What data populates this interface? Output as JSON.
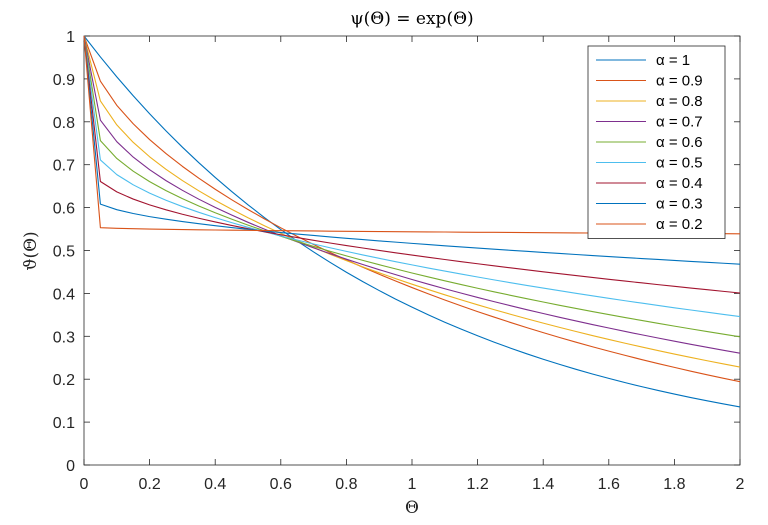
{
  "chart_data": {
    "type": "line",
    "title": "ψ(Θ) = exp(Θ)",
    "xlabel": "Θ",
    "ylabel": "ϑ(Θ)",
    "xlim": [
      0,
      2
    ],
    "ylim": [
      0,
      1
    ],
    "xticks": [
      0,
      0.2,
      0.4,
      0.6,
      0.8,
      1,
      1.2,
      1.4,
      1.6,
      1.8,
      2
    ],
    "xtick_labels": [
      "0",
      "0.2",
      "0.4",
      "0.6",
      "0.8",
      "1",
      "1.2",
      "1.4",
      "1.6",
      "1.8",
      "2"
    ],
    "yticks": [
      0,
      0.1,
      0.2,
      0.3,
      0.4,
      0.5,
      0.6,
      0.7,
      0.8,
      0.9,
      1
    ],
    "ytick_labels": [
      "0",
      "0.1",
      "0.2",
      "0.3",
      "0.4",
      "0.5",
      "0.6",
      "0.7",
      "0.8",
      "0.9",
      "1"
    ],
    "grid": false,
    "legend_position": "top-right",
    "x": [
      0,
      0.05,
      0.1,
      0.15,
      0.2,
      0.25,
      0.3,
      0.35,
      0.4,
      0.45,
      0.5,
      0.55,
      0.6,
      0.65,
      0.7,
      0.75,
      0.8,
      0.85,
      0.9,
      0.95,
      1.0,
      1.05,
      1.1,
      1.15,
      1.2,
      1.25,
      1.3,
      1.35,
      1.4,
      1.45,
      1.5,
      1.55,
      1.6,
      1.65,
      1.7,
      1.75,
      1.8,
      1.85,
      1.9,
      1.95,
      2.0
    ],
    "series": [
      {
        "name": "α = 1",
        "color": "#0072bd",
        "values": [
          1.0,
          0.9512,
          0.9048,
          0.8607,
          0.8187,
          0.7788,
          0.7408,
          0.7047,
          0.6703,
          0.6376,
          0.6065,
          0.5769,
          0.5488,
          0.522,
          0.4966,
          0.4724,
          0.4493,
          0.4274,
          0.4066,
          0.3867,
          0.3679,
          0.3499,
          0.3329,
          0.3166,
          0.3012,
          0.2865,
          0.2725,
          0.2592,
          0.2466,
          0.2346,
          0.2231,
          0.2122,
          0.2019,
          0.192,
          0.1827,
          0.1738,
          0.1653,
          0.1572,
          0.1496,
          0.1423,
          0.1353
        ]
      },
      {
        "name": "α = 0.9",
        "color": "#d95319",
        "values": [
          1.0,
          0.8946,
          0.8383,
          0.7954,
          0.7586,
          0.7259,
          0.6961,
          0.6686,
          0.6428,
          0.6185,
          0.5956,
          0.5737,
          0.5529,
          0.533,
          0.5139,
          0.4956,
          0.478,
          0.461,
          0.4446,
          0.4289,
          0.4136,
          0.3989,
          0.3847,
          0.371,
          0.3576,
          0.3448,
          0.3323,
          0.3202,
          0.3086,
          0.2972,
          0.2863,
          0.2757,
          0.2654,
          0.2555,
          0.2458,
          0.2365,
          0.2275,
          0.2187,
          0.2103,
          0.2021,
          0.1942
        ]
      },
      {
        "name": "α = 0.8",
        "color": "#edb120",
        "values": [
          1.0,
          0.8485,
          0.7927,
          0.7521,
          0.7185,
          0.6893,
          0.6631,
          0.6391,
          0.6169,
          0.5961,
          0.5764,
          0.5578,
          0.54,
          0.5231,
          0.5069,
          0.4913,
          0.4763,
          0.4619,
          0.448,
          0.4345,
          0.4215,
          0.4089,
          0.3967,
          0.3849,
          0.3734,
          0.3622,
          0.3514,
          0.3409,
          0.3307,
          0.3208,
          0.3112,
          0.3018,
          0.2927,
          0.2838,
          0.2752,
          0.2668,
          0.2586,
          0.2507,
          0.243,
          0.2355,
          0.2282
        ]
      },
      {
        "name": "α = 0.7",
        "color": "#7e2f8e",
        "values": [
          1.0,
          0.8038,
          0.7536,
          0.7177,
          0.6883,
          0.6629,
          0.6403,
          0.6196,
          0.6005,
          0.5826,
          0.5657,
          0.5497,
          0.5345,
          0.52,
          0.5061,
          0.4927,
          0.4798,
          0.4674,
          0.4553,
          0.4437,
          0.4324,
          0.4215,
          0.4109,
          0.4006,
          0.3906,
          0.3808,
          0.3713,
          0.3621,
          0.3531,
          0.3443,
          0.3358,
          0.3274,
          0.3193,
          0.3113,
          0.3036,
          0.296,
          0.2886,
          0.2814,
          0.2743,
          0.2674,
          0.2607
        ]
      },
      {
        "name": "α = 0.6",
        "color": "#77ac30",
        "values": [
          1.0,
          0.7562,
          0.7145,
          0.6848,
          0.6605,
          0.6395,
          0.6208,
          0.6037,
          0.5879,
          0.5731,
          0.5591,
          0.5459,
          0.5332,
          0.5211,
          0.5095,
          0.4983,
          0.4875,
          0.477,
          0.4669,
          0.4571,
          0.4476,
          0.4383,
          0.4293,
          0.4206,
          0.412,
          0.4037,
          0.3956,
          0.3876,
          0.3799,
          0.3723,
          0.3649,
          0.3577,
          0.3506,
          0.3437,
          0.3369,
          0.3302,
          0.3237,
          0.3173,
          0.3111,
          0.3049,
          0.2989
        ]
      },
      {
        "name": "α = 0.5",
        "color": "#4dbeee",
        "values": [
          1.0,
          0.7111,
          0.6769,
          0.6531,
          0.6338,
          0.6172,
          0.6024,
          0.589,
          0.5766,
          0.565,
          0.5541,
          0.5437,
          0.5338,
          0.5243,
          0.5152,
          0.5064,
          0.4979,
          0.4897,
          0.4817,
          0.474,
          0.4665,
          0.4591,
          0.452,
          0.445,
          0.4382,
          0.4315,
          0.425,
          0.4186,
          0.4124,
          0.4063,
          0.4003,
          0.3944,
          0.3886,
          0.3829,
          0.3774,
          0.3719,
          0.3665,
          0.3613,
          0.3561,
          0.351,
          0.346
        ]
      },
      {
        "name": "α = 0.4",
        "color": "#a2142f",
        "values": [
          1.0,
          0.6608,
          0.6366,
          0.6199,
          0.6064,
          0.5948,
          0.5845,
          0.5752,
          0.5665,
          0.5585,
          0.5509,
          0.5436,
          0.5367,
          0.5301,
          0.5237,
          0.5175,
          0.5116,
          0.5058,
          0.5001,
          0.4947,
          0.4893,
          0.4841,
          0.479,
          0.474,
          0.4691,
          0.4643,
          0.4596,
          0.4549,
          0.4504,
          0.4459,
          0.4415,
          0.4372,
          0.4329,
          0.4287,
          0.4246,
          0.4205,
          0.4165,
          0.4125,
          0.4086,
          0.4047,
          0.4009
        ]
      },
      {
        "name": "α = 0.3",
        "color": "#0072bd",
        "values": [
          1.0,
          0.6081,
          0.5951,
          0.5862,
          0.579,
          0.5729,
          0.5674,
          0.5624,
          0.5578,
          0.5535,
          0.5494,
          0.5456,
          0.5419,
          0.5384,
          0.535,
          0.5317,
          0.5285,
          0.5254,
          0.5224,
          0.5195,
          0.5166,
          0.5138,
          0.511,
          0.5083,
          0.5057,
          0.5031,
          0.5005,
          0.498,
          0.4955,
          0.4931,
          0.4907,
          0.4883,
          0.4859,
          0.4836,
          0.4813,
          0.4791,
          0.4768,
          0.4746,
          0.4724,
          0.4703,
          0.4681
        ]
      },
      {
        "name": "α = 0.2",
        "color": "#d95319",
        "values": [
          1.0,
          0.5531,
          0.5518,
          0.5508,
          0.55,
          0.5494,
          0.5488,
          0.5483,
          0.5478,
          0.5474,
          0.547,
          0.5466,
          0.5462,
          0.5458,
          0.5455,
          0.5451,
          0.5448,
          0.5445,
          0.5442,
          0.5439,
          0.5436,
          0.5433,
          0.5431,
          0.5428,
          0.5425,
          0.5423,
          0.542,
          0.5418,
          0.5415,
          0.5413,
          0.541,
          0.5408,
          0.5406,
          0.5404,
          0.5401,
          0.5399,
          0.5397,
          0.5395,
          0.5393,
          0.5391,
          0.5389
        ]
      }
    ]
  }
}
